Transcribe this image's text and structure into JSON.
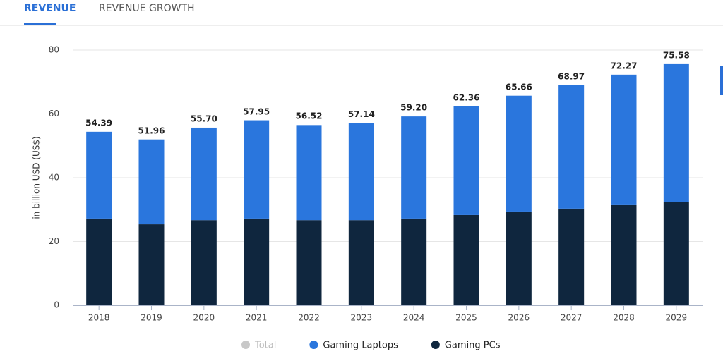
{
  "tabs": [
    "REVENUE",
    "REVENUE GROWTH"
  ],
  "chart_data": {
    "type": "stacked-bar",
    "y_label": "in billion USD (US$)",
    "categories": [
      "2018",
      "2019",
      "2020",
      "2021",
      "2022",
      "2023",
      "2024",
      "2025",
      "2026",
      "2027",
      "2028",
      "2029"
    ],
    "series": [
      {
        "name": "Total",
        "color": "#c8c8c8",
        "hidden": true,
        "values": [
          54.39,
          51.96,
          55.7,
          57.95,
          56.52,
          57.14,
          59.2,
          62.36,
          65.66,
          68.97,
          72.27,
          75.58
        ],
        "value_labels": [
          "54.39",
          "51.96",
          "55.70",
          "57.95",
          "56.52",
          "57.14",
          "59.20",
          "62.36",
          "65.66",
          "68.97",
          "72.27",
          "75.58"
        ]
      },
      {
        "name": "Gaming Laptops",
        "color": "#2a76dd",
        "values": [
          27.2,
          26.6,
          29.0,
          30.8,
          29.8,
          30.4,
          32.0,
          34.1,
          36.3,
          38.7,
          40.9,
          43.3
        ]
      },
      {
        "name": "Gaming PCs",
        "color": "#0f263e",
        "values": [
          27.2,
          25.4,
          26.7,
          27.2,
          26.7,
          26.7,
          27.2,
          28.3,
          29.4,
          30.3,
          31.4,
          32.3
        ]
      }
    ],
    "ylim": [
      0,
      80
    ],
    "yticks": [
      0,
      20,
      40,
      60,
      80
    ],
    "grid": true
  }
}
